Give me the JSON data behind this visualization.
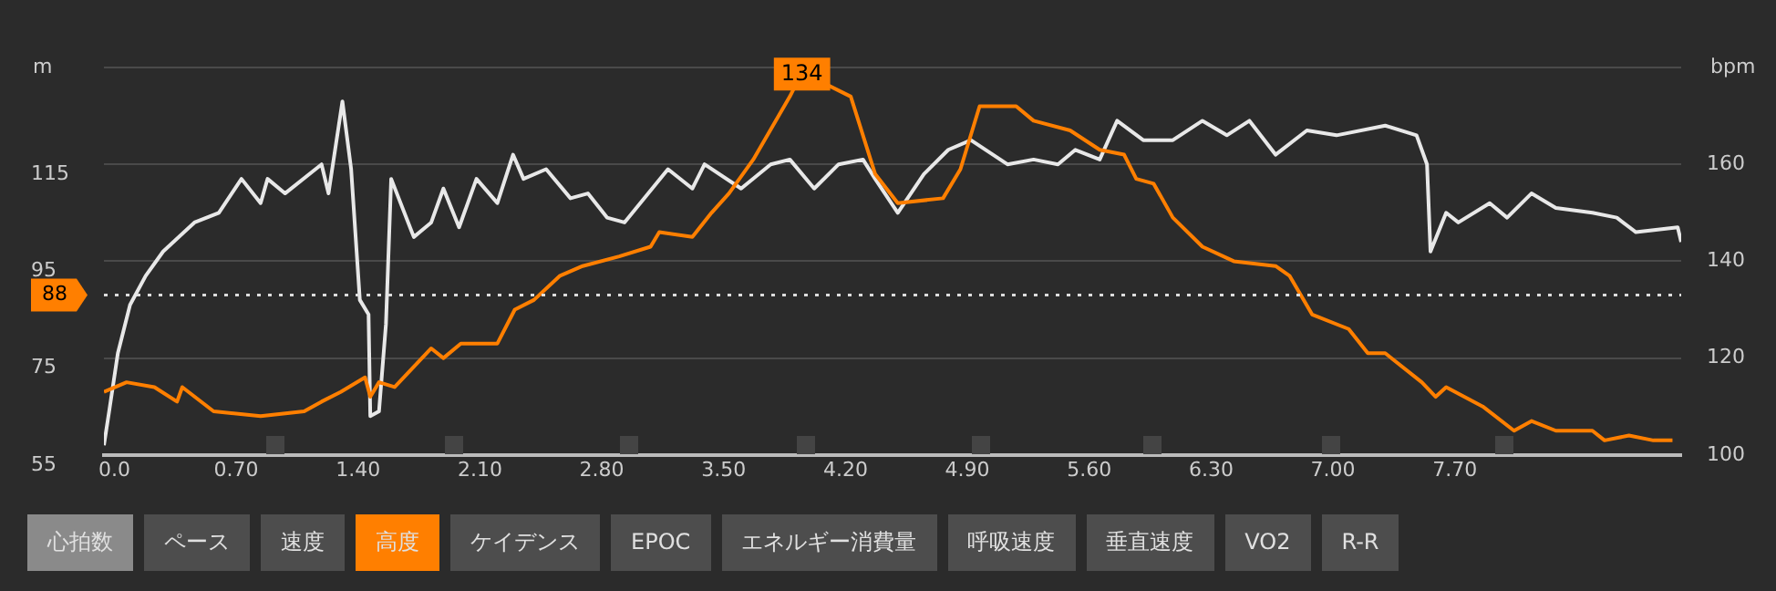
{
  "chart_data": {
    "type": "line",
    "ylabel": "m",
    "y2label": "bpm",
    "xlim": [
      -0.06,
      9.0
    ],
    "xticks": [
      {
        "value": 0,
        "label": "0.0"
      },
      {
        "value": 0.7,
        "label": "0.70"
      },
      {
        "value": 1.4,
        "label": "1.40"
      },
      {
        "value": 2.1,
        "label": "2.10"
      },
      {
        "value": 2.8,
        "label": "2.80"
      },
      {
        "value": 3.5,
        "label": "3.50"
      },
      {
        "value": 4.2,
        "label": "4.20"
      },
      {
        "value": 4.9,
        "label": "4.90"
      },
      {
        "value": 5.6,
        "label": "5.60"
      },
      {
        "value": 6.3,
        "label": "6.30"
      },
      {
        "value": 7.0,
        "label": "7.00"
      },
      {
        "value": 7.7,
        "label": "7.70"
      }
    ],
    "ylim": [
      55,
      135
    ],
    "yticks": [
      55,
      75,
      95,
      115,
      {
        "value": 135,
        "label": null
      }
    ],
    "y2lim": [
      100,
      180
    ],
    "y2ticks": [
      100,
      120,
      140,
      160,
      {
        "value": 180,
        "label": null
      }
    ],
    "grid": "y",
    "legend": false,
    "marker": "none",
    "line_style": "solid",
    "series": [
      {
        "color": "#ff7f00",
        "x": [
          -0.06,
          0.07,
          0.23,
          0.36,
          0.39,
          0.57,
          0.84,
          1.09,
          1.19,
          1.3,
          1.44,
          1.47,
          1.52,
          1.61,
          1.82,
          1.89,
          1.99,
          2.2,
          2.3,
          2.41,
          2.56,
          2.69,
          2.9,
          3.08,
          3.13,
          3.32,
          3.43,
          3.53,
          3.67,
          3.88,
          3.95,
          4.23,
          4.37,
          4.5,
          4.76,
          4.86,
          4.97,
          5.18,
          5.28,
          5.49,
          5.66,
          5.8,
          5.87,
          5.97,
          6.08,
          6.25,
          6.43,
          6.67,
          6.75,
          6.88,
          7.09,
          7.2,
          7.3,
          7.51,
          7.59,
          7.65,
          7.86,
          8.04,
          8.14,
          8.28,
          8.49,
          8.56,
          8.7,
          8.84,
          8.95
        ],
        "values": [
          68,
          70,
          69,
          66,
          69,
          64,
          63,
          64,
          66,
          68,
          71,
          67,
          70,
          69,
          77,
          75,
          78,
          78,
          85,
          87,
          92,
          94,
          96,
          98,
          101,
          100,
          105,
          109,
          116,
          129,
          134,
          129,
          113,
          107,
          108,
          114,
          127,
          127,
          124,
          122,
          118,
          117,
          112,
          111,
          104,
          98,
          95,
          94,
          92,
          84,
          81,
          76,
          76,
          70,
          67,
          69,
          65,
          60,
          62,
          60,
          60,
          58,
          59,
          58,
          58
        ]
      },
      {
        "color": "#e8e8e8",
        "axis": "y2",
        "x": [
          -0.06,
          -0.03,
          0.02,
          0.09,
          0.18,
          0.28,
          0.46,
          0.6,
          0.73,
          0.84,
          0.88,
          0.98,
          1.19,
          1.23,
          1.31,
          1.36,
          1.41,
          1.46,
          1.47,
          1.52,
          1.56,
          1.59,
          1.72,
          1.82,
          1.89,
          1.98,
          2.08,
          2.2,
          2.29,
          2.35,
          2.48,
          2.62,
          2.72,
          2.83,
          2.93,
          3.18,
          3.32,
          3.39,
          3.6,
          3.77,
          3.88,
          4.02,
          4.16,
          4.3,
          4.37,
          4.5,
          4.65,
          4.79,
          4.92,
          5.13,
          5.28,
          5.42,
          5.52,
          5.66,
          5.76,
          5.91,
          6.08,
          6.25,
          6.39,
          6.52,
          6.67,
          6.85,
          7.02,
          7.3,
          7.48,
          7.54,
          7.56,
          7.65,
          7.72,
          7.9,
          8.0,
          8.14,
          8.28,
          8.49,
          8.63,
          8.74,
          8.98,
          9.0
        ],
        "values": [
          102,
          109,
          121,
          131,
          137,
          142,
          148,
          150,
          157,
          152,
          157,
          154,
          160,
          154,
          173,
          159,
          132,
          129,
          108,
          109,
          127,
          157,
          145,
          148,
          155,
          147,
          157,
          152,
          162,
          157,
          159,
          153,
          154,
          149,
          148,
          159,
          155,
          160,
          155,
          160,
          161,
          155,
          160,
          161,
          157,
          150,
          158,
          163,
          165,
          160,
          161,
          160,
          163,
          161,
          169,
          165,
          165,
          169,
          166,
          169,
          162,
          167,
          166,
          168,
          166,
          160,
          142,
          150,
          148,
          152,
          149,
          154,
          151,
          150,
          149,
          146,
          147,
          144
        ]
      }
    ],
    "ref_lines": [
      {
        "axis": "y",
        "value": 88,
        "label": "88",
        "color": "#dddddd",
        "line_style": "dotted"
      }
    ],
    "annotations": [
      {
        "text": "134",
        "x": 3.95,
        "y": 134
      },
      "心拍数",
      "ペース",
      "速度",
      "高度",
      "ケイデンス",
      "EPOC",
      "エネルギー消費量",
      "呼吸速度",
      "垂直速度",
      "VO2",
      "R-R"
    ]
  }
}
